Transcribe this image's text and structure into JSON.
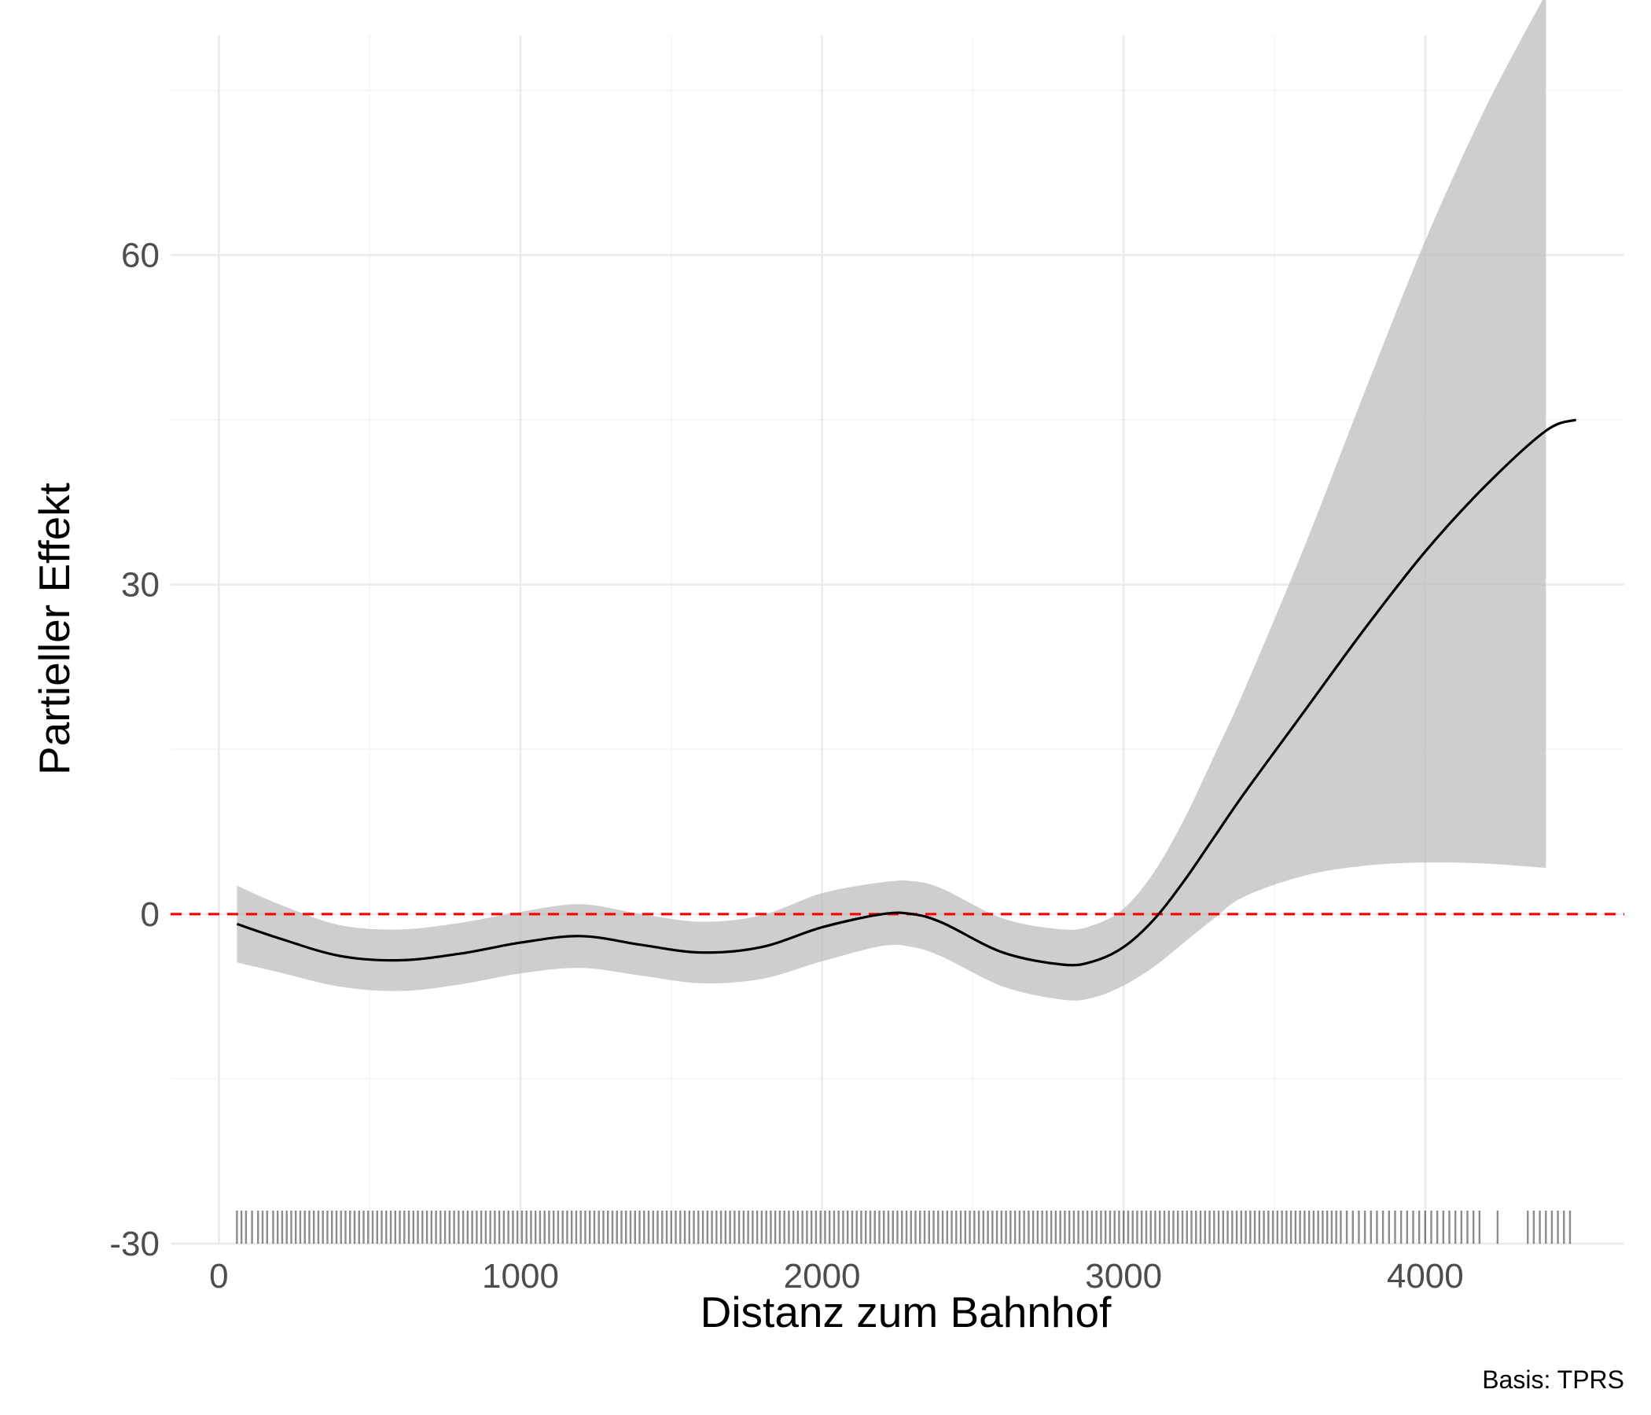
{
  "chart_data": {
    "type": "line",
    "xlabel": "Distanz zum Bahnhof",
    "ylabel": "Partieller Effekt",
    "caption": "Basis: TPRS",
    "xlim": [
      -160,
      4660
    ],
    "ylim": [
      -30,
      80
    ],
    "x_ticks": [
      0,
      1000,
      2000,
      3000,
      4000
    ],
    "y_ticks": [
      -30,
      0,
      30,
      60
    ],
    "x_minor_ticks": [
      500,
      1500,
      2500,
      3500
    ],
    "y_minor_ticks": [
      -15,
      15,
      45,
      75
    ],
    "reference_line": {
      "y": 0,
      "color": "#ff0000",
      "style": "dashed"
    },
    "grid": true,
    "series": [
      {
        "kind": "smooth",
        "x": [
          60,
          200,
          400,
          600,
          800,
          1000,
          1200,
          1400,
          1600,
          1800,
          2000,
          2200,
          2300,
          2400,
          2600,
          2800,
          2900,
          3000,
          3100,
          3200,
          3300,
          3400,
          3600,
          3800,
          4000,
          4200,
          4400,
          4500
        ],
        "y": [
          -0.9,
          -2.2,
          -3.8,
          -4.2,
          -3.6,
          -2.6,
          -2.0,
          -2.8,
          -3.5,
          -3.0,
          -1.2,
          0.0,
          0.0,
          -0.8,
          -3.5,
          -4.6,
          -4.3,
          -3.0,
          -0.5,
          3.0,
          7.0,
          11.0,
          18.5,
          26.0,
          33.0,
          39.0,
          44.0,
          45.0
        ],
        "lower": [
          -4.4,
          -5.3,
          -6.6,
          -7.0,
          -6.4,
          -5.4,
          -4.9,
          -5.6,
          -6.3,
          -5.9,
          -4.3,
          -2.9,
          -3.0,
          -3.9,
          -6.6,
          -7.8,
          -7.6,
          -6.5,
          -4.8,
          -2.6,
          -0.4,
          1.6,
          3.5,
          4.4,
          4.7,
          4.6,
          4.2,
          4.0
        ],
        "upper": [
          2.6,
          0.9,
          -1.0,
          -1.4,
          -0.8,
          0.2,
          0.9,
          0.0,
          -0.7,
          -0.1,
          1.9,
          2.9,
          3.0,
          2.3,
          -0.4,
          -1.4,
          -1.0,
          0.5,
          3.8,
          8.6,
          14.4,
          20.4,
          33.5,
          47.6,
          61.3,
          73.4,
          83.8,
          86.0
        ]
      }
    ],
    "rug": [
      60,
      75,
      90,
      110,
      130,
      145,
      160,
      180,
      195,
      210,
      225,
      240,
      255,
      270,
      285,
      300,
      315,
      330,
      345,
      360,
      375,
      390,
      405,
      420,
      435,
      450,
      465,
      480,
      495,
      510,
      525,
      540,
      555,
      570,
      585,
      600,
      615,
      630,
      645,
      660,
      675,
      690,
      705,
      720,
      735,
      750,
      765,
      780,
      795,
      810,
      825,
      840,
      855,
      870,
      885,
      900,
      915,
      930,
      945,
      960,
      975,
      990,
      1005,
      1020,
      1035,
      1050,
      1065,
      1080,
      1095,
      1110,
      1125,
      1140,
      1155,
      1170,
      1185,
      1200,
      1215,
      1230,
      1245,
      1260,
      1275,
      1290,
      1305,
      1320,
      1335,
      1350,
      1365,
      1380,
      1395,
      1410,
      1425,
      1440,
      1455,
      1470,
      1485,
      1500,
      1515,
      1530,
      1545,
      1560,
      1575,
      1590,
      1605,
      1620,
      1635,
      1650,
      1665,
      1680,
      1695,
      1710,
      1725,
      1740,
      1755,
      1770,
      1785,
      1800,
      1815,
      1830,
      1845,
      1860,
      1875,
      1890,
      1905,
      1920,
      1935,
      1950,
      1965,
      1980,
      1995,
      2010,
      2025,
      2040,
      2055,
      2070,
      2085,
      2100,
      2115,
      2130,
      2145,
      2160,
      2175,
      2190,
      2205,
      2220,
      2235,
      2250,
      2265,
      2280,
      2295,
      2310,
      2325,
      2340,
      2355,
      2370,
      2385,
      2400,
      2415,
      2430,
      2445,
      2460,
      2475,
      2490,
      2505,
      2520,
      2535,
      2550,
      2565,
      2580,
      2595,
      2610,
      2625,
      2640,
      2655,
      2670,
      2685,
      2700,
      2715,
      2730,
      2745,
      2760,
      2775,
      2790,
      2805,
      2820,
      2835,
      2850,
      2865,
      2880,
      2895,
      2910,
      2925,
      2940,
      2955,
      2970,
      2985,
      3000,
      3015,
      3030,
      3045,
      3060,
      3075,
      3090,
      3105,
      3120,
      3135,
      3150,
      3165,
      3180,
      3195,
      3210,
      3225,
      3240,
      3255,
      3270,
      3285,
      3300,
      3315,
      3330,
      3345,
      3360,
      3375,
      3390,
      3405,
      3420,
      3435,
      3450,
      3465,
      3480,
      3495,
      3510,
      3525,
      3540,
      3555,
      3570,
      3585,
      3600,
      3615,
      3630,
      3645,
      3660,
      3675,
      3690,
      3705,
      3720,
      3740,
      3760,
      3780,
      3800,
      3820,
      3840,
      3860,
      3880,
      3900,
      3920,
      3940,
      3960,
      3980,
      4000,
      4020,
      4040,
      4060,
      4080,
      4100,
      4120,
      4140,
      4160,
      4180,
      4240,
      4340,
      4360,
      4380,
      4400,
      4420,
      4440,
      4460,
      4480
    ]
  }
}
